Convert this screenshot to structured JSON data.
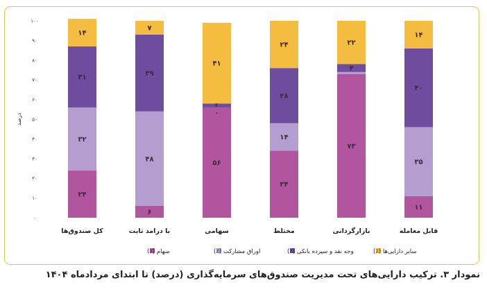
{
  "caption": "نمودار ۳. ترکیب دارایی‌های تحت مدیریت صندوق‌های سرمایه‌گذاری (درصد) تا ابتدای مردادماه ۱۴۰۴",
  "chart_data": {
    "type": "bar",
    "stacked": true,
    "ylabel": "درصد",
    "ylim": [
      0,
      100
    ],
    "yticks": [
      0,
      10,
      20,
      30,
      40,
      50,
      60,
      70,
      80,
      90,
      100
    ],
    "ytick_labels": [
      "۰",
      "۱۰",
      "۲۰",
      "۳۰",
      "۴۰",
      "۵۰",
      "۶۰",
      "۷۰",
      "۸۰",
      "۹۰",
      "۱۰۰"
    ],
    "grid": false,
    "legend_position": "bottom",
    "categories": [
      "کل صندوق‌ها",
      "با درامد ثابت",
      "سهامی",
      "مختلط",
      "بازارگردانی",
      "قابل معامله"
    ],
    "series": [
      {
        "name": "سهام (٪)",
        "color": "#b0559e",
        "values": [
          24,
          6,
          56,
          34,
          73,
          11
        ],
        "labels": [
          "۲۴",
          "۶",
          "۵۶",
          "۳۴",
          "۷۳",
          "۱۱"
        ]
      },
      {
        "name": "اوراق مشارکت (٪)",
        "color": "#b39ecf",
        "values": [
          32,
          48,
          0,
          14,
          1,
          35
        ],
        "labels": [
          "۳۲",
          "۴۸",
          "۰",
          "۱۴",
          "۱",
          "۳۵"
        ]
      },
      {
        "name": "وجه نقد و سپرده بانکی (٪)",
        "color": "#6e4c9e",
        "values": [
          31,
          39,
          2,
          28,
          4,
          40
        ],
        "labels": [
          "۳۱",
          "۳۹",
          "۲",
          "۲۸",
          "۴",
          "۴۰"
        ]
      },
      {
        "name": "سایر دارایی‌ها (٪)",
        "color": "#f4bd3f",
        "values": [
          14,
          7,
          41,
          24,
          22,
          14
        ],
        "labels": [
          "۱۴",
          "۷",
          "۴۱",
          "۲۴",
          "۲۲",
          "۱۴"
        ]
      }
    ]
  }
}
